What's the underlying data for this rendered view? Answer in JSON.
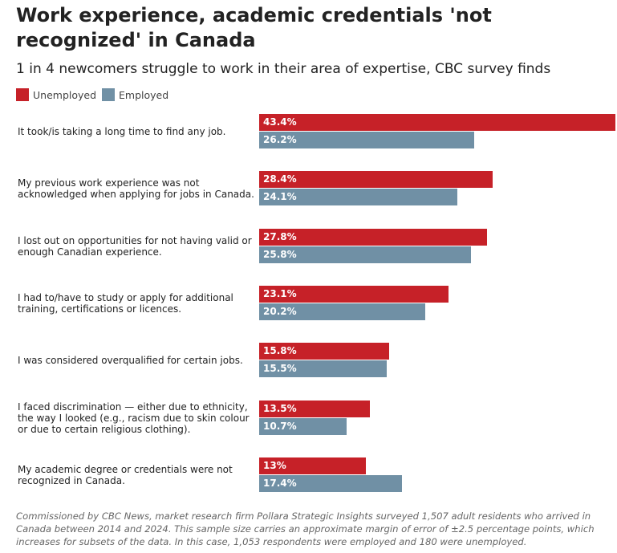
{
  "chart_data": {
    "type": "bar",
    "orientation": "horizontal",
    "title": "Work experience, academic credentials 'not recognized' in Canada",
    "subtitle": "1 in 4 newcomers struggle to work in their area of expertise, CBC survey finds",
    "legend": [
      {
        "name": "Unemployed",
        "color": "#c62128"
      },
      {
        "name": "Employed",
        "color": "#7090a5"
      }
    ],
    "legend_position": "top-left",
    "categories": [
      "It took/is taking a long time to find any job.",
      "My previous work experience was not acknowledged when applying for jobs in Canada.",
      "I lost out on opportunities for not having valid or enough Canadian experience.",
      "I had to/have to study or apply for additional training, certifications or licences.",
      "I was considered overqualified for certain jobs.",
      "I faced discrimination — either due to ethnicity, the way I looked (e.g., racism due to skin colour or due to certain religious clothing).",
      "My academic degree or credentials were not recognized in Canada."
    ],
    "series": [
      {
        "name": "Unemployed",
        "values": [
          43.4,
          28.4,
          27.8,
          23.1,
          15.8,
          13.5,
          13
        ],
        "labels": [
          "43.4%",
          "28.4%",
          "27.8%",
          "23.1%",
          "15.8%",
          "13.5%",
          "13%"
        ]
      },
      {
        "name": "Employed",
        "values": [
          26.2,
          24.1,
          25.8,
          20.2,
          15.5,
          10.7,
          17.4
        ],
        "labels": [
          "26.2%",
          "24.1%",
          "25.8%",
          "20.2%",
          "15.5%",
          "10.7%",
          "17.4%"
        ]
      }
    ],
    "xlim": [
      0,
      43.4
    ],
    "grid": false
  },
  "note": "Commissioned by CBC News, market research firm Pollara Strategic Insights surveyed 1,507 adult residents who arrived in Canada between 2014 and 2024. This sample size carries an approximate margin of error of ±2.5 percentage points, which increases for subsets of the data. In this case, 1,053 respondents were employed and 180 were unemployed."
}
